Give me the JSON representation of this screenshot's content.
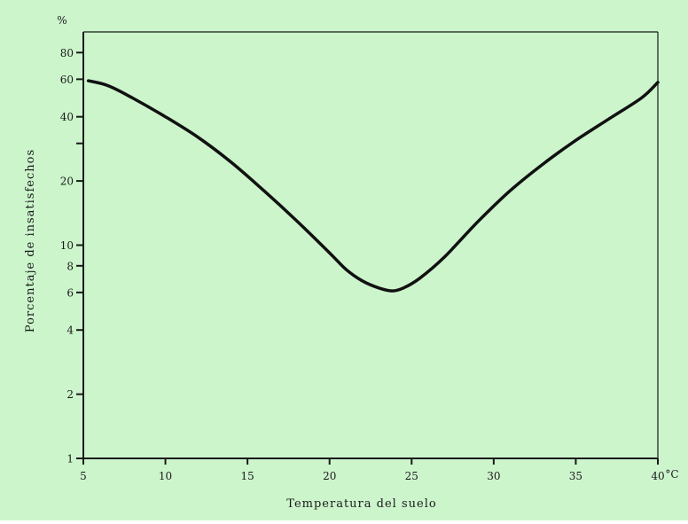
{
  "colors": {
    "background": "#ccf5cc",
    "axis": "#1a1a1a",
    "curve": "#111111"
  },
  "chart_data": {
    "type": "line",
    "xlabel": "Temperatura del suelo",
    "ylabel": "Porcentaje de insatisfechos",
    "x_unit": "°C",
    "y_unit": "%",
    "x_scale": "linear",
    "y_scale": "log",
    "xlim": [
      5,
      40
    ],
    "ylim": [
      1,
      100
    ],
    "x_ticks": [
      "5",
      "10",
      "15",
      "20",
      "25",
      "30",
      "35",
      "40"
    ],
    "y_ticks": [
      "1",
      "2",
      "4",
      "6",
      "8",
      "10",
      "20",
      "40",
      "60",
      "80"
    ],
    "grid": false,
    "legend": "none",
    "series": [
      {
        "x": [
          5.3,
          6.5,
          8,
          10,
          12,
          14,
          16,
          18,
          20,
          21,
          22,
          23,
          23.8,
          24.5,
          25.5,
          27,
          29,
          31,
          33,
          35,
          37,
          39,
          40
        ],
        "y": [
          59,
          56,
          49,
          40,
          32,
          24.5,
          18,
          13,
          9.2,
          7.7,
          6.8,
          6.3,
          6.1,
          6.3,
          7.0,
          8.8,
          12.8,
          18.0,
          24,
          31,
          39,
          49,
          58
        ]
      }
    ]
  }
}
